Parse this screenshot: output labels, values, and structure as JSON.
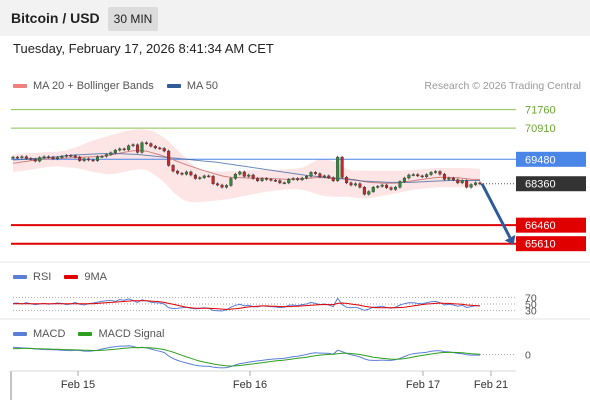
{
  "header": {
    "title": "Bitcoin / USD",
    "timeframe": "30 MIN"
  },
  "datetime": "Tuesday, February 17, 2026 8:41:34 AM CET",
  "credit": "Research © 2026 Trading Central",
  "legend": {
    "price": [
      {
        "label": "MA 20 + Bollinger Bands",
        "color": "#f08080"
      },
      {
        "label": "MA 50",
        "color": "#2f5b9a"
      }
    ],
    "rsi": [
      {
        "label": "RSI",
        "color": "#5b7fd6"
      },
      {
        "label": "9MA",
        "color": "#e00000"
      }
    ],
    "macd": [
      {
        "label": "MACD",
        "color": "#5b7fd6"
      },
      {
        "label": "MACD Signal",
        "color": "#2e9e1e"
      }
    ]
  },
  "chart_data": {
    "type": "candlestick",
    "x_ticks": [
      "Feb 15",
      "Feb 16",
      "Feb 17",
      "Feb 21"
    ],
    "price_ylim": [
      65000,
      72200
    ],
    "levels": [
      {
        "value": 71760,
        "label": "71760",
        "color": "#8cc152",
        "style": "thin"
      },
      {
        "value": 70910,
        "label": "70910",
        "color": "#8cc152",
        "style": "thin"
      },
      {
        "value": 69480,
        "label": "69480",
        "color": "#4a86e8",
        "style": "thin"
      },
      {
        "value": 68360,
        "label": "68360",
        "color": "#333333",
        "style": "current"
      },
      {
        "value": 66460,
        "label": "66460",
        "color": "#e00000",
        "style": "thick"
      },
      {
        "value": 65610,
        "label": "65610",
        "color": "#e00000",
        "style": "thick"
      }
    ],
    "close": [
      69580,
      69560,
      69600,
      69520,
      69480,
      69400,
      69560,
      69600,
      69580,
      69500,
      69560,
      69620,
      69660,
      69640,
      69580,
      69420,
      69500,
      69450,
      69420,
      69600,
      69620,
      69700,
      69780,
      69900,
      69960,
      69920,
      70100,
      70150,
      69800,
      70240,
      70200,
      70080,
      70000,
      69980,
      69860,
      69200,
      68940,
      68840,
      68800,
      68900,
      68760,
      68600,
      68640,
      68720,
      68700,
      68360,
      68300,
      68200,
      68280,
      68600,
      68800,
      68900,
      68700,
      68760,
      68600,
      68500,
      68600,
      68560,
      68520,
      68500,
      68400,
      68400,
      68560,
      68600,
      68540,
      68620,
      68700,
      68880,
      68820,
      68680,
      68720,
      68640,
      68500,
      69580,
      68660,
      68400,
      68300,
      68360,
      68200,
      67880,
      68000,
      68200,
      68240,
      68300,
      68180,
      68100,
      68200,
      68460,
      68620,
      68760,
      68780,
      68720,
      68680,
      68780,
      68880,
      68920,
      68800,
      68560,
      68620,
      68540,
      68400,
      68500,
      68200,
      68320,
      68400,
      68360
    ],
    "bollinger_mid": [
      69300,
      69320,
      69360,
      69380,
      69420,
      69440,
      69460,
      69480,
      69500,
      69510,
      69520,
      69530,
      69540,
      69550,
      69560,
      69570,
      69580,
      69590,
      69600,
      69610,
      69620,
      69640,
      69680,
      69720,
      69760,
      69800,
      69840,
      69870,
      69880,
      69880,
      69850,
      69800,
      69740,
      69680,
      69620,
      69540,
      69460,
      69380,
      69300,
      69230,
      69160,
      69090,
      69020,
      68960,
      68900,
      68840,
      68780,
      68720,
      68680,
      68660,
      68650,
      68640,
      68630,
      68620,
      68620,
      68620,
      68620,
      68610,
      68600,
      68590,
      68580,
      68570,
      68570,
      68570,
      68580,
      68590,
      68600,
      68620,
      68640,
      68640,
      68630,
      68620,
      68610,
      68620,
      68610,
      68600,
      68570,
      68540,
      68500,
      68460,
      68430,
      68410,
      68400,
      68390,
      68380,
      68380,
      68390,
      68410,
      68440,
      68470,
      68500,
      68530,
      68560,
      68590,
      68620,
      68640,
      68660,
      68660,
      68650,
      68640,
      68630,
      68610,
      68590,
      68570,
      68560,
      68550
    ],
    "bollinger_upper": [
      69700,
      69720,
      69740,
      69760,
      69780,
      69780,
      69790,
      69800,
      69810,
      69820,
      69830,
      69860,
      69900,
      69960,
      70020,
      70100,
      70180,
      70260,
      70340,
      70400,
      70460,
      70520,
      70580,
      70640,
      70700,
      70760,
      70800,
      70840,
      70860,
      70860,
      70840,
      70800,
      70720,
      70600,
      70460,
      70300,
      70100,
      69900,
      69700,
      69500,
      69300,
      69150,
      69040,
      68980,
      68940,
      68920,
      68920,
      68920,
      68930,
      68940,
      68950,
      68960,
      68970,
      68980,
      68990,
      69000,
      69000,
      69000,
      69000,
      69000,
      69000,
      69010,
      69020,
      69040,
      69060,
      69100,
      69180,
      69300,
      69420,
      69480,
      69480,
      69460,
      69400,
      69300,
      69160,
      69040,
      68980,
      68960,
      68960,
      68960,
      68960,
      68960,
      68960,
      68960,
      68960,
      68960,
      68960,
      68960,
      68970,
      68980,
      68990,
      69000,
      69020,
      69040,
      69060,
      69080,
      69080,
      69080,
      69080,
      69080,
      69080,
      69080,
      69080,
      69070,
      69060,
      69050
    ],
    "bollinger_lower": [
      68900,
      68920,
      68940,
      68970,
      69000,
      69040,
      69070,
      69100,
      69130,
      69150,
      69160,
      69140,
      69120,
      69100,
      69080,
      69050,
      69000,
      68950,
      68900,
      68860,
      68830,
      68800,
      68800,
      68820,
      68860,
      68900,
      68950,
      68990,
      69010,
      69020,
      68980,
      68880,
      68740,
      68600,
      68420,
      68200,
      67980,
      67800,
      67660,
      67560,
      67520,
      67520,
      67520,
      67540,
      67560,
      67580,
      67600,
      67620,
      67640,
      67680,
      67720,
      67760,
      67800,
      67840,
      67880,
      67920,
      67960,
      67990,
      68020,
      68050,
      68070,
      68090,
      68100,
      68100,
      68100,
      68080,
      68040,
      67980,
      67900,
      67840,
      67800,
      67780,
      67760,
      67760,
      67760,
      67760,
      67740,
      67720,
      67700,
      67690,
      67700,
      67720,
      67760,
      67800,
      67840,
      67880,
      67920,
      67960,
      68000,
      68040,
      68080,
      68110,
      68130,
      68150,
      68170,
      68190,
      68200,
      68200,
      68200,
      68200,
      68200,
      68200,
      68200,
      68200,
      68200,
      68200
    ],
    "ma50": [
      69450,
      69460,
      69470,
      69490,
      69510,
      69520,
      69530,
      69540,
      69560,
      69580,
      69600,
      69620,
      69640,
      69660,
      69680,
      69690,
      69700,
      69710,
      69720,
      69730,
      69740,
      69740,
      69740,
      69740,
      69740,
      69730,
      69720,
      69710,
      69700,
      69680,
      69660,
      69640,
      69620,
      69600,
      69580,
      69560,
      69540,
      69520,
      69500,
      69480,
      69460,
      69440,
      69420,
      69400,
      69380,
      69360,
      69340,
      69310,
      69280,
      69250,
      69220,
      69190,
      69160,
      69130,
      69100,
      69070,
      69040,
      69010,
      68980,
      68950,
      68920,
      68890,
      68860,
      68830,
      68800,
      68770,
      68740,
      68720,
      68700,
      68680,
      68660,
      68640,
      68620,
      68600,
      68580,
      68560,
      68540,
      68520,
      68500,
      68480,
      68470,
      68460,
      68450,
      68440,
      68430,
      68420,
      68420,
      68420,
      68420,
      68420,
      68430,
      68440,
      68450,
      68460,
      68470,
      68480,
      68490,
      68500,
      68510,
      68510,
      68510,
      68510,
      68510,
      68510,
      68510,
      68510
    ],
    "projection": {
      "from": 68360,
      "to": 65610
    },
    "rsi_levels": [
      70,
      50,
      30
    ],
    "rsi_ylim": [
      0,
      100
    ],
    "rsi": [
      52,
      53,
      50,
      54,
      51,
      48,
      50,
      52,
      49,
      51,
      53,
      52,
      48,
      50,
      55,
      49,
      47,
      51,
      53,
      56,
      58,
      60,
      62,
      58,
      64,
      62,
      66,
      61,
      55,
      63,
      60,
      56,
      54,
      53,
      50,
      38,
      36,
      37,
      38,
      40,
      37,
      35,
      36,
      38,
      37,
      30,
      29,
      28,
      32,
      40,
      46,
      49,
      44,
      46,
      42,
      41,
      44,
      43,
      42,
      41,
      39,
      40,
      46,
      47,
      45,
      48,
      50,
      55,
      52,
      48,
      50,
      47,
      42,
      68,
      48,
      40,
      38,
      40,
      36,
      30,
      34,
      40,
      41,
      43,
      39,
      37,
      40,
      47,
      51,
      54,
      54,
      52,
      51,
      54,
      57,
      58,
      54,
      47,
      49,
      47,
      43,
      46,
      39,
      42,
      45,
      44
    ],
    "rsi_ma": [
      51,
      51,
      51,
      51,
      51,
      51,
      51,
      51,
      51,
      51,
      51,
      51,
      51,
      51,
      51,
      51,
      51,
      51,
      51,
      52,
      53,
      54,
      55,
      56,
      57,
      58,
      59,
      60,
      60,
      60,
      60,
      59,
      58,
      57,
      55,
      52,
      49,
      46,
      43,
      40,
      38,
      37,
      37,
      37,
      37,
      36,
      35,
      34,
      33,
      34,
      35,
      37,
      39,
      41,
      42,
      43,
      44,
      44,
      43,
      43,
      42,
      42,
      42,
      43,
      43,
      44,
      45,
      46,
      47,
      48,
      48,
      48,
      48,
      52,
      53,
      52,
      50,
      48,
      46,
      43,
      41,
      39,
      38,
      38,
      38,
      38,
      38,
      39,
      40,
      42,
      44,
      46,
      48,
      50,
      51,
      52,
      53,
      52,
      52,
      51,
      50,
      49,
      47,
      46,
      45,
      44
    ],
    "macd": [
      0.5,
      0.48,
      0.46,
      0.44,
      0.42,
      0.38,
      0.36,
      0.35,
      0.34,
      0.33,
      0.32,
      0.3,
      0.28,
      0.27,
      0.3,
      0.28,
      0.24,
      0.22,
      0.25,
      0.3,
      0.38,
      0.44,
      0.5,
      0.54,
      0.58,
      0.58,
      0.6,
      0.56,
      0.46,
      0.5,
      0.46,
      0.38,
      0.3,
      0.22,
      0.14,
      -0.1,
      -0.28,
      -0.4,
      -0.5,
      -0.58,
      -0.66,
      -0.74,
      -0.78,
      -0.8,
      -0.8,
      -0.86,
      -0.9,
      -0.92,
      -0.9,
      -0.82,
      -0.72,
      -0.62,
      -0.58,
      -0.52,
      -0.48,
      -0.44,
      -0.4,
      -0.36,
      -0.32,
      -0.3,
      -0.28,
      -0.26,
      -0.2,
      -0.14,
      -0.12,
      -0.06,
      0.0,
      0.08,
      0.12,
      0.1,
      0.1,
      0.08,
      0.02,
      0.3,
      0.2,
      0.08,
      -0.02,
      -0.08,
      -0.16,
      -0.3,
      -0.38,
      -0.4,
      -0.4,
      -0.38,
      -0.4,
      -0.4,
      -0.36,
      -0.26,
      -0.14,
      -0.02,
      0.06,
      0.1,
      0.12,
      0.16,
      0.22,
      0.26,
      0.26,
      0.2,
      0.18,
      0.14,
      0.08,
      0.06,
      -0.02,
      -0.04,
      -0.04,
      -0.04
    ],
    "macd_signal": [
      0.4,
      0.41,
      0.42,
      0.42,
      0.42,
      0.41,
      0.4,
      0.39,
      0.38,
      0.37,
      0.36,
      0.35,
      0.34,
      0.33,
      0.32,
      0.31,
      0.3,
      0.29,
      0.28,
      0.28,
      0.29,
      0.31,
      0.34,
      0.37,
      0.4,
      0.43,
      0.46,
      0.48,
      0.48,
      0.48,
      0.48,
      0.46,
      0.43,
      0.39,
      0.34,
      0.26,
      0.17,
      0.06,
      -0.05,
      -0.16,
      -0.26,
      -0.36,
      -0.45,
      -0.52,
      -0.58,
      -0.64,
      -0.7,
      -0.74,
      -0.78,
      -0.79,
      -0.78,
      -0.75,
      -0.72,
      -0.68,
      -0.64,
      -0.6,
      -0.56,
      -0.52,
      -0.48,
      -0.44,
      -0.41,
      -0.38,
      -0.34,
      -0.3,
      -0.26,
      -0.22,
      -0.18,
      -0.13,
      -0.08,
      -0.04,
      -0.01,
      0.01,
      0.02,
      0.06,
      0.09,
      0.09,
      0.07,
      0.04,
      0.0,
      -0.06,
      -0.12,
      -0.18,
      -0.22,
      -0.26,
      -0.29,
      -0.31,
      -0.32,
      -0.31,
      -0.28,
      -0.23,
      -0.17,
      -0.11,
      -0.06,
      -0.01,
      0.04,
      0.08,
      0.12,
      0.14,
      0.15,
      0.15,
      0.14,
      0.12,
      0.09,
      0.06,
      0.04,
      0.02
    ],
    "macd_ylim": [
      -1.2,
      1.0
    ],
    "macd_zero_label": "0"
  }
}
